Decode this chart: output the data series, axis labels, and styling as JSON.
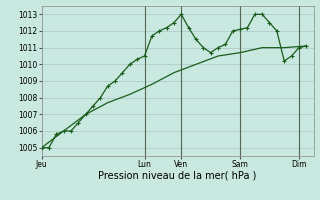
{
  "background_color": "#c8e8e0",
  "grid_color": "#b0cccc",
  "line_color": "#1a5c1a",
  "xlabel": "Pression niveau de la mer( hPa )",
  "ylim": [
    1004.5,
    1013.5
  ],
  "yticks": [
    1005,
    1006,
    1007,
    1008,
    1009,
    1010,
    1011,
    1012,
    1013
  ],
  "xtick_labels": [
    "Jeu",
    "Lun",
    "Ven",
    "Sam",
    "Dim"
  ],
  "xtick_positions": [
    0,
    14,
    19,
    27,
    35
  ],
  "vline_positions": [
    14,
    19,
    27,
    35
  ],
  "xlim": [
    0,
    37
  ],
  "series1_x": [
    0,
    1,
    2,
    3,
    4,
    5,
    6,
    7,
    8,
    9,
    10,
    11,
    12,
    13,
    14,
    15,
    16,
    17,
    18,
    19,
    20,
    21,
    22,
    23,
    24,
    25,
    26,
    27,
    28,
    29,
    30,
    31,
    32,
    33,
    34,
    35,
    36
  ],
  "series1_y": [
    1005.0,
    1005.0,
    1005.8,
    1006.0,
    1006.0,
    1006.5,
    1007.0,
    1007.5,
    1008.0,
    1008.7,
    1009.0,
    1009.5,
    1010.0,
    1010.3,
    1010.5,
    1011.7,
    1012.0,
    1012.2,
    1012.5,
    1013.0,
    1012.2,
    1011.5,
    1011.0,
    1010.7,
    1011.0,
    1011.2,
    1012.0,
    1012.1,
    1012.2,
    1013.0,
    1013.0,
    1012.5,
    1012.0,
    1010.2,
    1010.5,
    1011.0,
    1011.1
  ],
  "series2_x": [
    0,
    3,
    6,
    9,
    12,
    15,
    18,
    21,
    24,
    27,
    30,
    33,
    36
  ],
  "series2_y": [
    1005.0,
    1006.0,
    1007.0,
    1007.7,
    1008.2,
    1008.8,
    1009.5,
    1010.0,
    1010.5,
    1010.7,
    1011.0,
    1011.0,
    1011.1
  ]
}
